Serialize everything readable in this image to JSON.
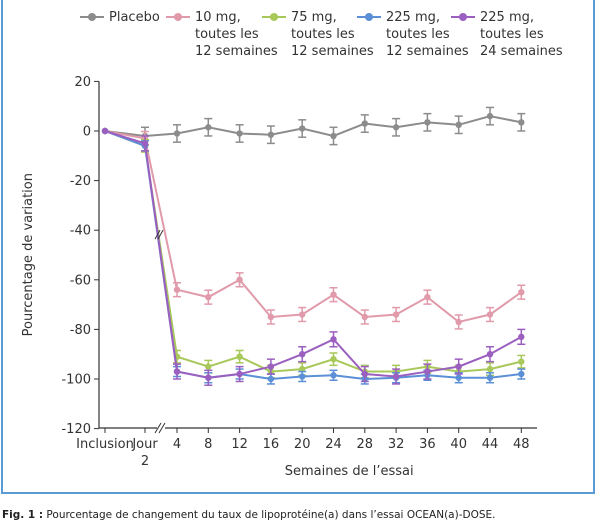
{
  "chart_data": {
    "type": "line",
    "ylabel": "Pourcentage de variation",
    "xlabel": "Semaines de l’essai",
    "ylim": [
      -120,
      20
    ],
    "yticks": [
      "20",
      "0",
      "-20",
      "-40",
      "-60",
      "-80",
      "-100",
      "-120"
    ],
    "ytick_values": [
      20,
      0,
      -20,
      -40,
      -60,
      -80,
      -100,
      -120
    ],
    "categories": [
      "Inclusion",
      "Jour 2",
      "4",
      "8",
      "12",
      "16",
      "20",
      "24",
      "28",
      "32",
      "36",
      "40",
      "44",
      "48"
    ],
    "axis_break": "between Jour 2 and 4",
    "legend_position": "top",
    "series": [
      {
        "name": "Placebo",
        "color": "#8c8c8c",
        "error": 3.5,
        "values": [
          0,
          -2,
          -1,
          1.5,
          -1,
          -1.5,
          1,
          -2,
          3,
          1.5,
          3.5,
          2.5,
          6,
          3.5
        ]
      },
      {
        "name": "10 mg, toutes les 12 semaines",
        "color": "#e09aaa",
        "error": 2.8,
        "values": [
          0,
          -3,
          -64,
          -67,
          -60,
          -75,
          -74,
          -66,
          -75,
          -74,
          -67,
          -77,
          -74,
          -65
        ]
      },
      {
        "name": "75 mg, toutes les 12 semaines",
        "color": "#a8c85a",
        "error": 2.5,
        "values": [
          0,
          -6,
          -91,
          -95,
          -91,
          -97,
          -96,
          -92,
          -97,
          -97,
          -95,
          -97,
          -96,
          -93
        ]
      },
      {
        "name": "225 mg, toutes les 12 semaines",
        "color": "#5b8fd6",
        "error": 2,
        "values": [
          0,
          -6,
          -97,
          -99.5,
          -98,
          -100,
          -99,
          -98.5,
          -100,
          -99.5,
          -98.5,
          -99.5,
          -99.5,
          -98
        ]
      },
      {
        "name": "225 mg, toutes les 24 semaines",
        "color": "#9b5fc0",
        "error": 3,
        "values": [
          0,
          -5,
          -97,
          -99.5,
          -98,
          -95,
          -90,
          -84,
          -98,
          -99,
          -97,
          -95,
          -90,
          -83
        ]
      }
    ]
  },
  "legend": [
    {
      "label": "Placebo",
      "color": "#8c8c8c"
    },
    {
      "label": "10 mg,\ntoutes les\n12 semaines",
      "color": "#e09aaa"
    },
    {
      "label": "75 mg,\ntoutes les\n12 semaines",
      "color": "#a8c85a"
    },
    {
      "label": "225 mg,\ntoutes les\n12 semaines",
      "color": "#5b8fd6"
    },
    {
      "label": "225 mg,\ntoutes les\n24 semaines",
      "color": "#9b5fc0"
    }
  ],
  "caption": {
    "label": "Fig. 1 :",
    "text": " Pourcentage de changement du taux de lipoprotéine(a) dans l’essai OCEAN(a)-DOSE."
  },
  "frame_color": "#5b9bd5"
}
